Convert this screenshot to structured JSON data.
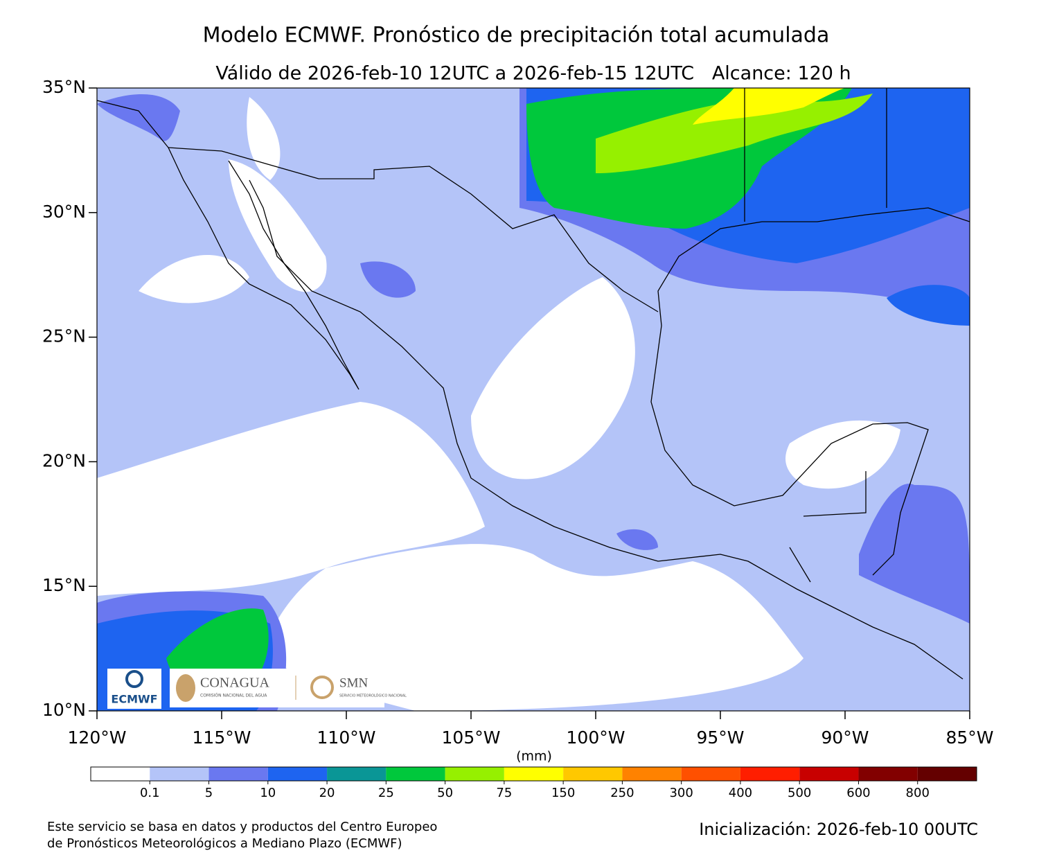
{
  "title": "Modelo ECMWF. Pronóstico de precipitación total acumulada",
  "subtitle": "Válido de 2026-feb-10 12UTC a 2026-feb-15 12UTC   Alcance: 120 h",
  "map": {
    "lat_lim": [
      10,
      35
    ],
    "lon_lim": [
      -120,
      -85
    ],
    "lat_ticks": [
      {
        "value": 35,
        "label": "35°N"
      },
      {
        "value": 30,
        "label": "30°N"
      },
      {
        "value": 25,
        "label": "25°N"
      },
      {
        "value": 20,
        "label": "20°N"
      },
      {
        "value": 15,
        "label": "15°N"
      },
      {
        "value": 10,
        "label": "10°N"
      }
    ],
    "lon_ticks": [
      {
        "value": -120,
        "label": "120°W"
      },
      {
        "value": -115,
        "label": "115°W"
      },
      {
        "value": -110,
        "label": "110°W"
      },
      {
        "value": -105,
        "label": "105°W"
      },
      {
        "value": -100,
        "label": "100°W"
      },
      {
        "value": -95,
        "label": "95°W"
      },
      {
        "value": -90,
        "label": "90°W"
      },
      {
        "value": -85,
        "label": "85°W"
      }
    ]
  },
  "colorbar": {
    "unit": "(mm)",
    "colors": [
      "#ffffff",
      "#b4c4f8",
      "#6a78f0",
      "#1e64f0",
      "#0a9696",
      "#00c83c",
      "#96f000",
      "#ffff00",
      "#ffc800",
      "#ff8200",
      "#ff5000",
      "#ff1e00",
      "#c80000",
      "#820000",
      "#640000"
    ],
    "levels": [
      0.1,
      5,
      10,
      20,
      25,
      50,
      75,
      150,
      250,
      300,
      400,
      500,
      600,
      800
    ]
  },
  "logos": {
    "ecmwf": "ECMWF",
    "conagua": "CONAGUA",
    "conagua_sub": "COMISIÓN NACIONAL DEL AGUA",
    "smn": "SMN",
    "smn_sub": "SERVICIO METEOROLÓGICO NACIONAL"
  },
  "footer": {
    "credit": [
      "Este servicio se basa en datos y productos del Centro Europeo",
      "de Pronósticos Meteorológicos a Mediano Plazo (ECMWF)"
    ],
    "init": "Inicialización: 2026-feb-10 00UTC"
  }
}
